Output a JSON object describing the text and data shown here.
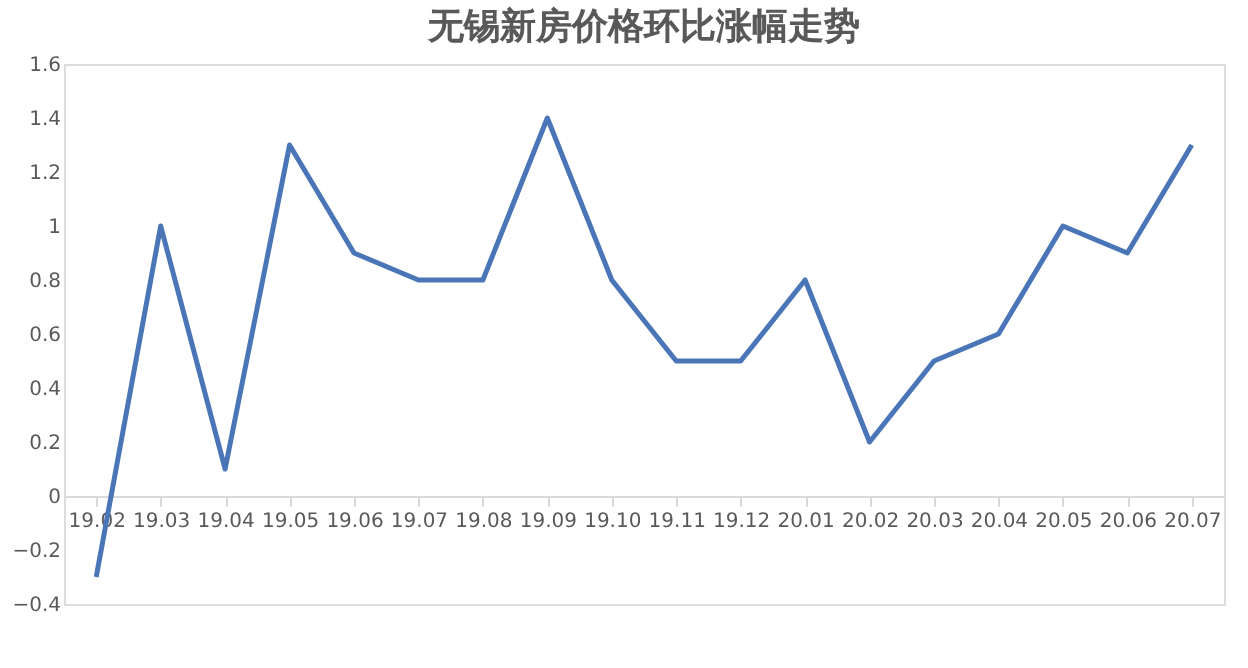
{
  "chart_data": {
    "type": "line",
    "title": "无锡新房价格环比涨幅走势",
    "categories": [
      "19.02",
      "19.03",
      "19.04",
      "19.05",
      "19.06",
      "19.07",
      "19.08",
      "19.09",
      "19.10",
      "19.11",
      "19.12",
      "20.01",
      "20.02",
      "20.03",
      "20.04",
      "20.05",
      "20.06",
      "20.07"
    ],
    "series": [
      {
        "color": "#4a76b8",
        "values": [
          -0.3,
          1.0,
          0.1,
          1.3,
          0.9,
          0.8,
          0.8,
          1.4,
          0.8,
          0.5,
          0.5,
          0.8,
          0.2,
          0.5,
          0.6,
          1.0,
          0.9,
          1.3
        ]
      }
    ],
    "ylim": [
      -0.4,
      1.6
    ],
    "yticks": [
      -0.4,
      -0.2,
      0,
      0.2,
      0.4,
      0.6,
      0.8,
      1,
      1.2,
      1.4,
      1.6
    ],
    "grid": false,
    "marker": "none",
    "line_style": "solid"
  }
}
